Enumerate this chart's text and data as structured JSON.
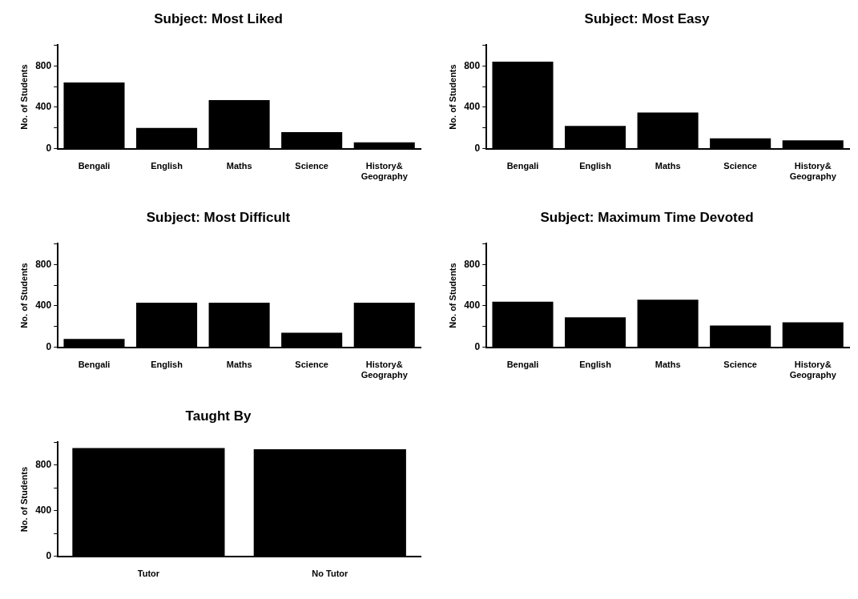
{
  "chart_data": [
    {
      "type": "bar",
      "title": "Subject: Most Liked",
      "ylabel": "No. of Students",
      "categories": [
        "Bengali",
        "English",
        "Maths",
        "Science",
        "History&\nGeography"
      ],
      "values": [
        640,
        200,
        470,
        160,
        60
      ],
      "color": "#000000",
      "ylim": [
        0,
        1000
      ],
      "yticks": [
        0,
        {
          "value": 200,
          "label": null
        },
        400,
        {
          "value": 600,
          "label": null
        },
        800,
        {
          "value": 1000,
          "label": null
        }
      ],
      "grid": false,
      "legend": false
    },
    {
      "type": "bar",
      "title": "Subject: Most Easy",
      "ylabel": "No. of Students",
      "categories": [
        "Bengali",
        "English",
        "Maths",
        "Science",
        "History&\nGeography"
      ],
      "values": [
        840,
        220,
        350,
        100,
        80
      ],
      "color": "#000000",
      "ylim": [
        0,
        1000
      ],
      "yticks": [
        0,
        {
          "value": 200,
          "label": null
        },
        400,
        {
          "value": 600,
          "label": null
        },
        800,
        {
          "value": 1000,
          "label": null
        }
      ],
      "grid": false,
      "legend": false
    },
    {
      "type": "bar",
      "title": "Subject: Most Difficult",
      "ylabel": "No. of Students",
      "categories": [
        "Bengali",
        "English",
        "Maths",
        "Science",
        "History&\nGeography"
      ],
      "values": [
        80,
        430,
        430,
        140,
        430
      ],
      "color": "#000000",
      "ylim": [
        0,
        1000
      ],
      "yticks": [
        0,
        {
          "value": 200,
          "label": null
        },
        400,
        {
          "value": 600,
          "label": null
        },
        800,
        {
          "value": 1000,
          "label": null
        }
      ],
      "grid": false,
      "legend": false
    },
    {
      "type": "bar",
      "title": "Subject: Maximum Time Devoted",
      "ylabel": "No. of Students",
      "categories": [
        "Bengali",
        "English",
        "Maths",
        "Science",
        "History&\nGeography"
      ],
      "values": [
        440,
        290,
        460,
        210,
        240
      ],
      "color": "#000000",
      "ylim": [
        0,
        1000
      ],
      "yticks": [
        0,
        {
          "value": 200,
          "label": null
        },
        400,
        {
          "value": 600,
          "label": null
        },
        800,
        {
          "value": 1000,
          "label": null
        }
      ],
      "grid": false,
      "legend": false
    },
    {
      "type": "bar",
      "title": "Taught By",
      "ylabel": "No. of Students",
      "categories": [
        "Tutor",
        "No Tutor"
      ],
      "values": [
        950,
        940
      ],
      "color": "#000000",
      "ylim": [
        0,
        1000
      ],
      "yticks": [
        0,
        {
          "value": 200,
          "label": null
        },
        400,
        {
          "value": 600,
          "label": null
        },
        800,
        {
          "value": 1000,
          "label": null
        }
      ],
      "grid": false,
      "legend": false
    }
  ]
}
